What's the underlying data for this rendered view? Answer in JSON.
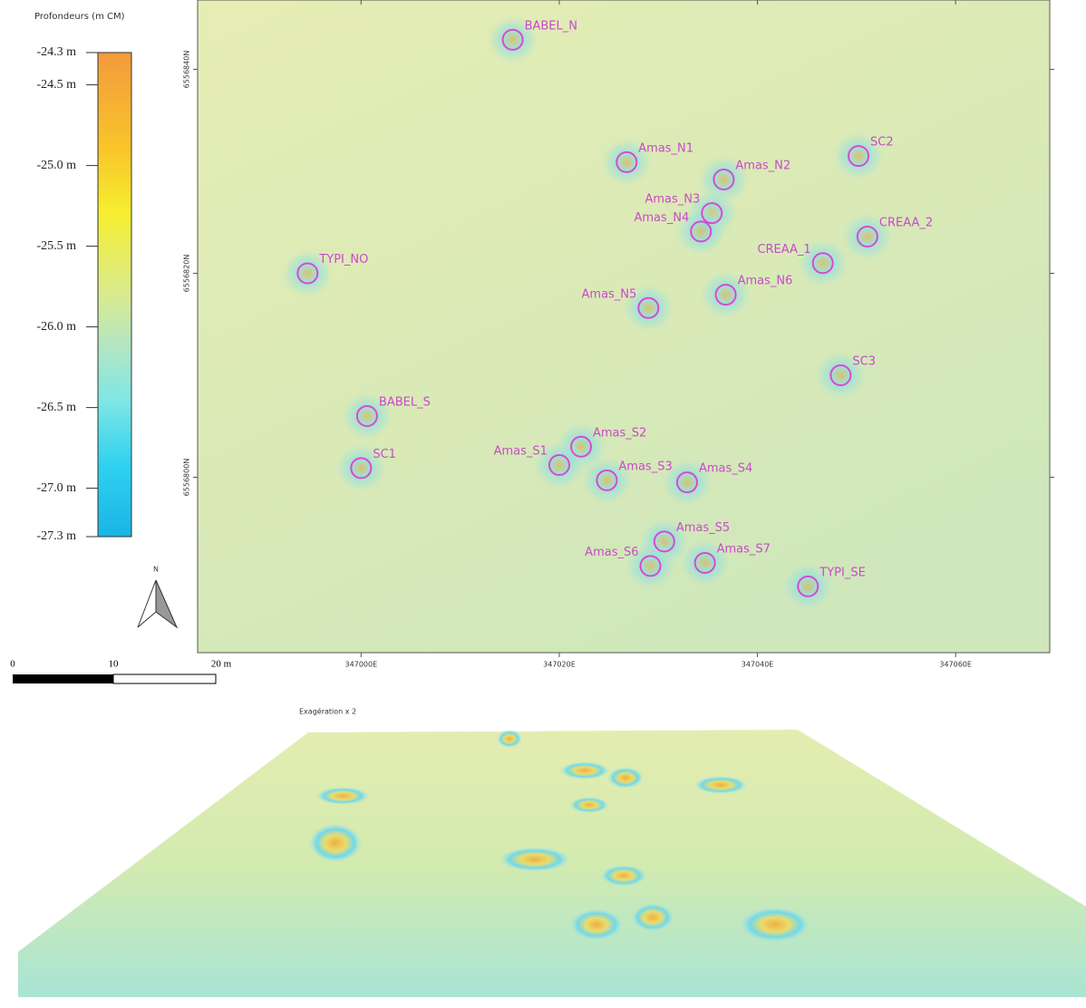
{
  "legend": {
    "title": "Profondeurs (m CM)",
    "ylim": [
      -27.3,
      -24.3
    ],
    "ticks": [
      {
        "value": -24.3,
        "label": "-24.3 m"
      },
      {
        "value": -24.5,
        "label": "-24.5 m"
      },
      {
        "value": -25.0,
        "label": "-25.0 m"
      },
      {
        "value": -25.5,
        "label": "-25.5 m"
      },
      {
        "value": -26.0,
        "label": "-26.0 m"
      },
      {
        "value": -26.5,
        "label": "-26.5 m"
      },
      {
        "value": -27.0,
        "label": "-27.0 m"
      },
      {
        "value": -27.3,
        "label": "-27.3 m"
      }
    ]
  },
  "scale_bar": {
    "labels": [
      "0",
      "10",
      "20 m"
    ]
  },
  "north_arrow": "N",
  "map": {
    "xlim": [
      346983.5,
      347069.5
    ],
    "ylim": [
      6556782.8,
      6556846.8
    ],
    "xticks": [
      {
        "value": 347000,
        "label": "347000E"
      },
      {
        "value": 347020,
        "label": "347020E"
      },
      {
        "value": 347040,
        "label": "347040E"
      },
      {
        "value": 347060,
        "label": "347060E"
      }
    ],
    "yticks": [
      {
        "value": 6556840,
        "label": "6556840N"
      },
      {
        "value": 6556820,
        "label": "6556820N"
      },
      {
        "value": 6556800,
        "label": "6556800N"
      }
    ],
    "locations": [
      {
        "name": "BABEL_N",
        "easting": 347015.3,
        "northing": 6556842.9
      },
      {
        "name": "Amas_N1",
        "easting": 347026.8,
        "northing": 6556830.9
      },
      {
        "name": "Amas_N2",
        "easting": 347036.6,
        "northing": 6556829.2
      },
      {
        "name": "Amas_N3",
        "easting": 347035.4,
        "northing": 6556825.9
      },
      {
        "name": "Amas_N4",
        "easting": 347034.3,
        "northing": 6556824.1
      },
      {
        "name": "SC2",
        "easting": 347050.2,
        "northing": 6556831.5
      },
      {
        "name": "CREAA_2",
        "easting": 347051.1,
        "northing": 6556823.6
      },
      {
        "name": "CREAA_1",
        "easting": 347046.6,
        "northing": 6556821.0
      },
      {
        "name": "Amas_N6",
        "easting": 347036.8,
        "northing": 6556817.9
      },
      {
        "name": "Amas_N5",
        "easting": 347029.0,
        "northing": 6556816.6
      },
      {
        "name": "TYPI_NO",
        "easting": 346994.6,
        "northing": 6556820.0
      },
      {
        "name": "SC3",
        "easting": 347048.4,
        "northing": 6556810.0
      },
      {
        "name": "BABEL_S",
        "easting": 347000.6,
        "northing": 6556806.0
      },
      {
        "name": "SC1",
        "easting": 347000.0,
        "northing": 6556800.9
      },
      {
        "name": "Amas_S2",
        "easting": 347022.2,
        "northing": 6556803.0
      },
      {
        "name": "Amas_S1",
        "easting": 347020.0,
        "northing": 6556801.2
      },
      {
        "name": "Amas_S3",
        "easting": 347024.8,
        "northing": 6556799.7
      },
      {
        "name": "Amas_S4",
        "easting": 347032.9,
        "northing": 6556799.5
      },
      {
        "name": "Amas_S5",
        "easting": 347030.6,
        "northing": 6556793.7
      },
      {
        "name": "Amas_S6",
        "easting": 347029.2,
        "northing": 6556791.3
      },
      {
        "name": "Amas_S7",
        "easting": 347034.7,
        "northing": 6556791.6
      },
      {
        "name": "TYPI_SE",
        "easting": 347045.1,
        "northing": 6556789.3
      }
    ]
  },
  "view_3d": {
    "caption": "Exagération x 2"
  }
}
